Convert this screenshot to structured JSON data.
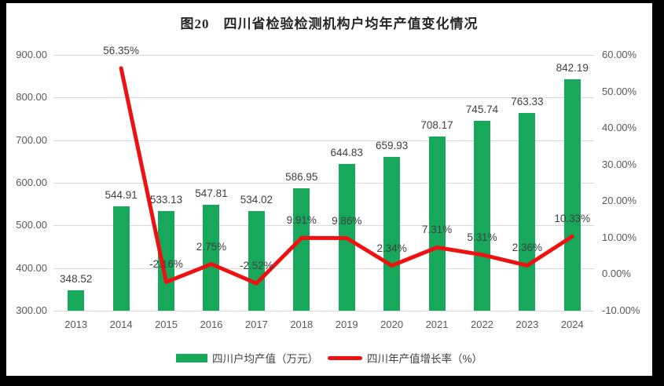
{
  "title": "图20　四川省检验检测机构户均年产值变化情况",
  "chart_data": {
    "type": "bar",
    "subtype": "bar+line dual axis",
    "categories": [
      "2013",
      "2014",
      "2015",
      "2016",
      "2017",
      "2018",
      "2019",
      "2020",
      "2021",
      "2022",
      "2023",
      "2024"
    ],
    "series": [
      {
        "name": "四川户均产值（万元）",
        "type": "bar",
        "axis": "left",
        "color": "#18A85C",
        "values": [
          348.52,
          544.91,
          533.13,
          547.81,
          534.02,
          586.95,
          644.83,
          659.93,
          708.17,
          745.74,
          763.33,
          842.19
        ]
      },
      {
        "name": "四川年产值增长率（%）",
        "type": "line",
        "axis": "right",
        "color": "#EE1111",
        "values": [
          null,
          56.35,
          -2.16,
          2.75,
          -2.52,
          9.91,
          9.86,
          2.34,
          7.31,
          5.31,
          2.36,
          10.33
        ],
        "label_suffix": "%"
      }
    ],
    "left_axis": {
      "min": 300,
      "max": 900,
      "ticks": [
        "900.00",
        "800.00",
        "700.00",
        "600.00",
        "500.00",
        "400.00",
        "300.00"
      ]
    },
    "right_axis": {
      "min": -10,
      "max": 60,
      "ticks": [
        "60.00%",
        "50.00%",
        "40.00%",
        "30.00%",
        "20.00%",
        "10.00%",
        "0.00%",
        "-10.00%"
      ]
    },
    "grid": "horizontal",
    "legend_position": "bottom",
    "data_labels": "shown above bars and line points"
  },
  "colors": {
    "bar_green": "#18A85C",
    "line_red": "#EE1111",
    "gridline": "#D9D9D9",
    "axis_text": "#595959",
    "label_text": "#3F3F3F",
    "frame": "#000000",
    "background": "#FFFFFF"
  }
}
